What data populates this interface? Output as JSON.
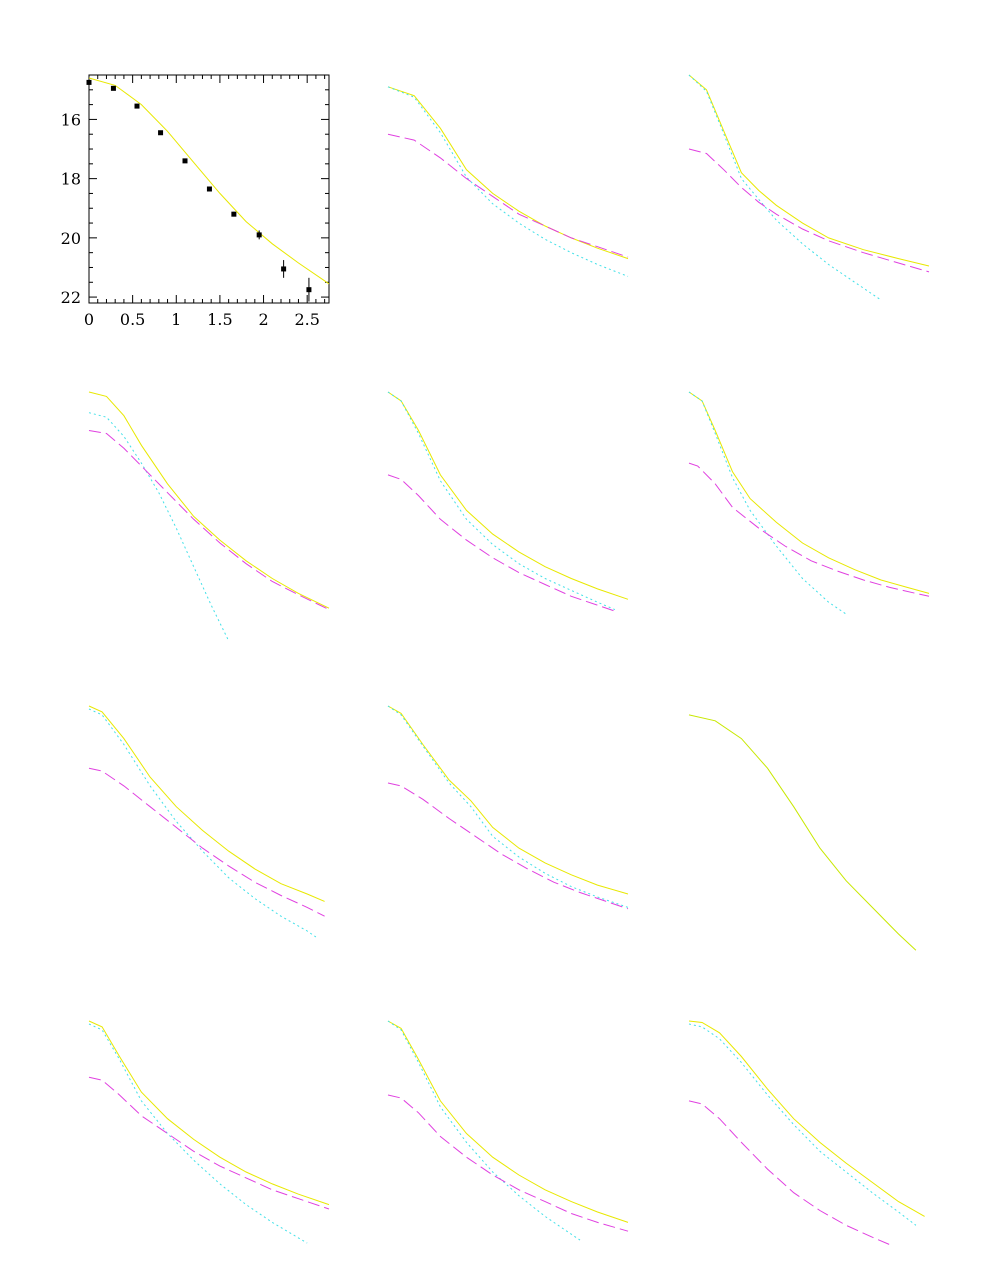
{
  "chart_data": [
    {
      "type": "scatter",
      "panel": 1,
      "title": "",
      "xlabel": "",
      "ylabel": "",
      "xlim": [
        0,
        2.75
      ],
      "ylim": [
        22.2,
        14.5
      ],
      "x_ticks": [
        0,
        0.5,
        1,
        1.5,
        2,
        2.5
      ],
      "x_tick_labels": [
        "0",
        "0.5",
        "1",
        "1.5",
        "2",
        "2.5"
      ],
      "y_ticks": [
        16,
        18,
        20,
        22
      ],
      "y_tick_labels": [
        "16",
        "18",
        "20",
        "22"
      ],
      "points": {
        "x": [
          0.0,
          0.28,
          0.55,
          0.82,
          1.1,
          1.38,
          1.66,
          1.95,
          2.23,
          2.52
        ],
        "y": [
          14.75,
          14.95,
          15.55,
          16.45,
          17.4,
          18.35,
          19.2,
          19.9,
          21.05,
          21.75
        ],
        "yerr": [
          0.05,
          0.05,
          0.05,
          0.05,
          0.05,
          0.05,
          0.08,
          0.15,
          0.3,
          0.4
        ]
      },
      "series": [
        {
          "name": "solid",
          "style": "solid",
          "color": "#e8e800",
          "x": [
            0,
            0.3,
            0.6,
            0.9,
            1.2,
            1.5,
            1.8,
            2.1,
            2.4,
            2.75
          ],
          "y": [
            14.6,
            14.85,
            15.5,
            16.4,
            17.45,
            18.5,
            19.45,
            20.2,
            20.85,
            21.55
          ]
        }
      ]
    },
    {
      "type": "line",
      "panel": 2,
      "series": [
        {
          "name": "solid",
          "style": "solid",
          "color": "#e8e800",
          "x": [
            0,
            0.3,
            0.6,
            0.9,
            1.2,
            1.5,
            1.8,
            2.1,
            2.4,
            2.75
          ],
          "y": [
            14.9,
            15.2,
            16.3,
            17.7,
            18.5,
            19.1,
            19.6,
            20.0,
            20.35,
            20.7
          ]
        },
        {
          "name": "dotted",
          "style": "dotted",
          "color": "#40e0e8",
          "x": [
            0,
            0.3,
            0.6,
            0.9,
            1.2,
            1.5,
            1.8,
            2.1,
            2.4,
            2.75
          ],
          "y": [
            14.9,
            15.25,
            16.45,
            17.95,
            18.85,
            19.5,
            20.05,
            20.5,
            20.9,
            21.3
          ]
        },
        {
          "name": "dashed",
          "style": "dashed",
          "color": "#e040e0",
          "x": [
            0,
            0.3,
            0.6,
            0.9,
            1.2,
            1.5,
            1.8,
            2.1,
            2.4,
            2.75
          ],
          "y": [
            16.5,
            16.7,
            17.3,
            18.0,
            18.6,
            19.2,
            19.6,
            20.0,
            20.3,
            20.65
          ]
        }
      ]
    },
    {
      "type": "line",
      "panel": 3,
      "series": [
        {
          "name": "solid",
          "style": "solid",
          "color": "#e8e800",
          "x": [
            0,
            0.2,
            0.4,
            0.6,
            0.8,
            1.0,
            1.3,
            1.6,
            2.0,
            2.4,
            2.75
          ],
          "y": [
            14.5,
            15.0,
            16.4,
            17.8,
            18.4,
            18.9,
            19.5,
            20.0,
            20.4,
            20.7,
            20.95
          ]
        },
        {
          "name": "dotted",
          "style": "dotted",
          "color": "#40e0e8",
          "x": [
            0,
            0.2,
            0.4,
            0.6,
            0.8,
            1.0,
            1.3,
            1.6,
            1.9,
            2.2
          ],
          "y": [
            14.5,
            15.05,
            16.5,
            18.0,
            18.7,
            19.4,
            20.2,
            20.9,
            21.5,
            22.1
          ]
        },
        {
          "name": "dashed",
          "style": "dashed",
          "color": "#e040e0",
          "x": [
            0,
            0.2,
            0.4,
            0.6,
            0.8,
            1.0,
            1.3,
            1.6,
            2.0,
            2.4,
            2.75
          ],
          "y": [
            17.0,
            17.15,
            17.7,
            18.3,
            18.8,
            19.2,
            19.7,
            20.1,
            20.5,
            20.85,
            21.15
          ]
        }
      ]
    },
    {
      "type": "line",
      "panel": 4,
      "series": [
        {
          "name": "solid",
          "style": "solid",
          "color": "#e8e800",
          "x": [
            0,
            0.2,
            0.4,
            0.6,
            0.9,
            1.2,
            1.5,
            1.8,
            2.1,
            2.4,
            2.75
          ],
          "y": [
            14.5,
            14.65,
            15.3,
            16.3,
            17.6,
            18.7,
            19.5,
            20.2,
            20.8,
            21.3,
            21.8
          ]
        },
        {
          "name": "dotted",
          "style": "dotted",
          "color": "#40e0e8",
          "x": [
            0,
            0.2,
            0.4,
            0.6,
            0.8,
            1.0,
            1.2,
            1.4,
            1.6
          ],
          "y": [
            15.2,
            15.35,
            16.0,
            16.9,
            17.9,
            19.1,
            20.4,
            21.7,
            22.9
          ]
        },
        {
          "name": "dashed",
          "style": "dashed",
          "color": "#e040e0",
          "x": [
            0,
            0.2,
            0.4,
            0.6,
            0.9,
            1.2,
            1.5,
            1.8,
            2.1,
            2.4,
            2.75
          ],
          "y": [
            15.8,
            15.9,
            16.4,
            17.0,
            17.9,
            18.8,
            19.6,
            20.3,
            20.9,
            21.35,
            21.85
          ]
        }
      ]
    },
    {
      "type": "line",
      "panel": 5,
      "series": [
        {
          "name": "solid",
          "style": "solid",
          "color": "#e8e800",
          "x": [
            0,
            0.15,
            0.35,
            0.6,
            0.9,
            1.2,
            1.5,
            1.8,
            2.1,
            2.4,
            2.75
          ],
          "y": [
            14.5,
            14.8,
            15.8,
            17.3,
            18.5,
            19.3,
            19.9,
            20.4,
            20.8,
            21.15,
            21.5
          ]
        },
        {
          "name": "dotted",
          "style": "dotted",
          "color": "#40e0e8",
          "x": [
            0,
            0.15,
            0.35,
            0.6,
            0.9,
            1.2,
            1.5,
            1.8,
            2.1,
            2.4,
            2.6
          ],
          "y": [
            14.5,
            14.8,
            15.9,
            17.5,
            18.8,
            19.65,
            20.3,
            20.8,
            21.2,
            21.6,
            21.85
          ]
        },
        {
          "name": "dashed",
          "style": "dashed",
          "color": "#e040e0",
          "x": [
            0,
            0.15,
            0.35,
            0.6,
            0.9,
            1.2,
            1.5,
            1.8,
            2.1,
            2.4,
            2.6
          ],
          "y": [
            17.3,
            17.45,
            18.0,
            18.8,
            19.5,
            20.1,
            20.6,
            21.0,
            21.4,
            21.7,
            21.9
          ]
        }
      ]
    },
    {
      "type": "line",
      "panel": 6,
      "series": [
        {
          "name": "solid",
          "style": "solid",
          "color": "#e8e800",
          "x": [
            0,
            0.15,
            0.3,
            0.5,
            0.7,
            1.0,
            1.3,
            1.6,
            1.9,
            2.2,
            2.5,
            2.75
          ],
          "y": [
            14.5,
            14.8,
            15.8,
            17.2,
            18.1,
            18.9,
            19.6,
            20.1,
            20.5,
            20.85,
            21.1,
            21.3
          ]
        },
        {
          "name": "dotted",
          "style": "dotted",
          "color": "#40e0e8",
          "x": [
            0,
            0.15,
            0.3,
            0.5,
            0.7,
            1.0,
            1.3,
            1.6,
            1.8
          ],
          "y": [
            14.5,
            14.8,
            15.9,
            17.4,
            18.5,
            19.7,
            20.8,
            21.6,
            22.0
          ]
        },
        {
          "name": "dashed",
          "style": "dashed",
          "color": "#e040e0",
          "x": [
            0,
            0.1,
            0.3,
            0.5,
            0.8,
            1.1,
            1.4,
            1.7,
            2.0,
            2.3,
            2.6,
            2.75
          ],
          "y": [
            16.9,
            17.0,
            17.6,
            18.4,
            19.1,
            19.7,
            20.2,
            20.55,
            20.85,
            21.1,
            21.3,
            21.4
          ]
        }
      ]
    },
    {
      "type": "line",
      "panel": 7,
      "series": [
        {
          "name": "solid",
          "style": "solid",
          "color": "#e8e800",
          "x": [
            0,
            0.15,
            0.4,
            0.7,
            1.0,
            1.3,
            1.6,
            1.9,
            2.2,
            2.5,
            2.7
          ],
          "y": [
            14.5,
            14.7,
            15.6,
            16.9,
            17.9,
            18.7,
            19.4,
            20.0,
            20.5,
            20.85,
            21.1
          ]
        },
        {
          "name": "dotted",
          "style": "dotted",
          "color": "#40e0e8",
          "x": [
            0,
            0.15,
            0.4,
            0.7,
            1.0,
            1.3,
            1.6,
            1.9,
            2.2,
            2.5,
            2.6
          ],
          "y": [
            14.6,
            14.8,
            15.8,
            17.2,
            18.4,
            19.4,
            20.3,
            21.0,
            21.6,
            22.1,
            22.3
          ]
        },
        {
          "name": "dashed",
          "style": "dashed",
          "color": "#e040e0",
          "x": [
            0,
            0.15,
            0.4,
            0.7,
            1.0,
            1.3,
            1.6,
            1.9,
            2.2,
            2.5,
            2.7
          ],
          "y": [
            16.6,
            16.7,
            17.2,
            17.9,
            18.6,
            19.3,
            19.9,
            20.45,
            20.9,
            21.3,
            21.6
          ]
        }
      ]
    },
    {
      "type": "line",
      "panel": 8,
      "series": [
        {
          "name": "solid",
          "style": "solid",
          "color": "#e8e800",
          "x": [
            0,
            0.15,
            0.4,
            0.7,
            0.95,
            1.2,
            1.5,
            1.8,
            2.1,
            2.4,
            2.75
          ],
          "y": [
            14.5,
            14.75,
            15.8,
            17.0,
            17.7,
            18.6,
            19.3,
            19.8,
            20.2,
            20.55,
            20.85
          ]
        },
        {
          "name": "dotted",
          "style": "dotted",
          "color": "#40e0e8",
          "x": [
            0,
            0.15,
            0.4,
            0.7,
            0.95,
            1.2,
            1.5,
            1.8,
            2.1,
            2.4,
            2.75
          ],
          "y": [
            14.5,
            14.8,
            15.85,
            17.1,
            17.9,
            18.9,
            19.6,
            20.15,
            20.6,
            20.95,
            21.3
          ]
        },
        {
          "name": "dashed",
          "style": "dashed",
          "color": "#e040e0",
          "x": [
            0,
            0.15,
            0.4,
            0.7,
            1.0,
            1.3,
            1.6,
            1.9,
            2.2,
            2.5,
            2.75
          ],
          "y": [
            17.1,
            17.2,
            17.65,
            18.3,
            18.9,
            19.5,
            20.0,
            20.45,
            20.8,
            21.1,
            21.35
          ]
        }
      ]
    },
    {
      "type": "line",
      "panel": 9,
      "series": [
        {
          "name": "solid",
          "style": "solid",
          "color": "#c8e800",
          "x": [
            0,
            0.3,
            0.6,
            0.9,
            1.2,
            1.5,
            1.8,
            2.1,
            2.4,
            2.6
          ],
          "y": [
            14.8,
            15.0,
            15.6,
            16.6,
            17.9,
            19.3,
            20.4,
            21.3,
            22.2,
            22.75
          ]
        }
      ]
    },
    {
      "type": "line",
      "panel": 10,
      "series": [
        {
          "name": "solid",
          "style": "solid",
          "color": "#e8e800",
          "x": [
            0,
            0.15,
            0.35,
            0.6,
            0.9,
            1.2,
            1.5,
            1.8,
            2.1,
            2.4,
            2.75
          ],
          "y": [
            14.5,
            14.7,
            15.7,
            16.9,
            17.8,
            18.5,
            19.1,
            19.6,
            20.0,
            20.35,
            20.7
          ]
        },
        {
          "name": "dotted",
          "style": "dotted",
          "color": "#40e0e8",
          "x": [
            0,
            0.15,
            0.35,
            0.6,
            0.9,
            1.2,
            1.5,
            1.8,
            2.1,
            2.5
          ],
          "y": [
            14.6,
            14.8,
            15.8,
            17.2,
            18.3,
            19.2,
            20.0,
            20.7,
            21.3,
            22.0
          ]
        },
        {
          "name": "dashed",
          "style": "dashed",
          "color": "#e040e0",
          "x": [
            0,
            0.15,
            0.35,
            0.6,
            0.9,
            1.2,
            1.5,
            1.8,
            2.1,
            2.4,
            2.75
          ],
          "y": [
            16.4,
            16.5,
            17.0,
            17.7,
            18.3,
            18.9,
            19.4,
            19.8,
            20.2,
            20.5,
            20.85
          ]
        }
      ]
    },
    {
      "type": "line",
      "panel": 11,
      "series": [
        {
          "name": "solid",
          "style": "solid",
          "color": "#e8e800",
          "x": [
            0,
            0.15,
            0.35,
            0.6,
            0.9,
            1.2,
            1.5,
            1.8,
            2.1,
            2.4,
            2.75
          ],
          "y": [
            14.5,
            14.75,
            15.8,
            17.2,
            18.3,
            19.1,
            19.7,
            20.2,
            20.6,
            20.95,
            21.3
          ]
        },
        {
          "name": "dotted",
          "style": "dotted",
          "color": "#40e0e8",
          "x": [
            0,
            0.15,
            0.35,
            0.6,
            0.9,
            1.2,
            1.5,
            1.8,
            2.1,
            2.2
          ],
          "y": [
            14.5,
            14.8,
            15.9,
            17.4,
            18.6,
            19.6,
            20.4,
            21.1,
            21.7,
            21.9
          ]
        },
        {
          "name": "dashed",
          "style": "dashed",
          "color": "#e040e0",
          "x": [
            0,
            0.15,
            0.35,
            0.6,
            0.9,
            1.2,
            1.5,
            1.8,
            2.1,
            2.4,
            2.75
          ],
          "y": [
            17.0,
            17.1,
            17.6,
            18.4,
            19.1,
            19.7,
            20.2,
            20.6,
            21.0,
            21.3,
            21.6
          ]
        }
      ]
    },
    {
      "type": "line",
      "panel": 12,
      "series": [
        {
          "name": "solid",
          "style": "solid",
          "color": "#e8e800",
          "x": [
            0,
            0.15,
            0.35,
            0.6,
            0.9,
            1.2,
            1.5,
            1.8,
            2.1,
            2.4,
            2.7
          ],
          "y": [
            14.5,
            14.55,
            14.9,
            15.7,
            16.8,
            17.8,
            18.6,
            19.3,
            19.95,
            20.6,
            21.1
          ]
        },
        {
          "name": "dotted",
          "style": "dotted",
          "color": "#40e0e8",
          "x": [
            0,
            0.15,
            0.35,
            0.6,
            0.9,
            1.2,
            1.5,
            1.8,
            2.1,
            2.4,
            2.6
          ],
          "y": [
            14.6,
            14.7,
            15.1,
            15.9,
            17.0,
            18.0,
            18.9,
            19.6,
            20.3,
            20.95,
            21.4
          ]
        },
        {
          "name": "dashed",
          "style": "dashed",
          "color": "#e040e0",
          "x": [
            0,
            0.15,
            0.35,
            0.6,
            0.9,
            1.2,
            1.5,
            1.8,
            2.1,
            2.3
          ],
          "y": [
            17.2,
            17.3,
            17.8,
            18.6,
            19.5,
            20.3,
            20.9,
            21.4,
            21.8,
            22.05
          ]
        }
      ]
    }
  ]
}
